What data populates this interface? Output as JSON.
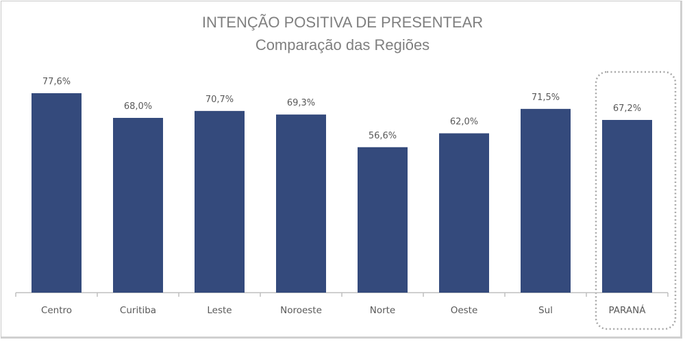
{
  "chart_data": {
    "type": "bar",
    "title": "INTENÇÃO POSITIVA DE PRESENTEAR",
    "subtitle": "Comparação das Regiões",
    "categories": [
      "Centro",
      "Curitiba",
      "Leste",
      "Noroeste",
      "Norte",
      "Oeste",
      "Sul",
      "PARANÁ"
    ],
    "values": [
      77.6,
      68.0,
      70.7,
      69.3,
      56.6,
      62.0,
      71.5,
      67.2
    ],
    "data_labels": [
      "77,6%",
      "68,0%",
      "70,7%",
      "69,3%",
      "56,6%",
      "62,0%",
      "71,5%",
      "67,2%"
    ],
    "highlighted": "PARANÁ",
    "xlabel": "",
    "ylabel": "",
    "ylim": [
      0,
      80
    ],
    "grid": false,
    "legend": "none",
    "bar_color": "#344a7c"
  }
}
